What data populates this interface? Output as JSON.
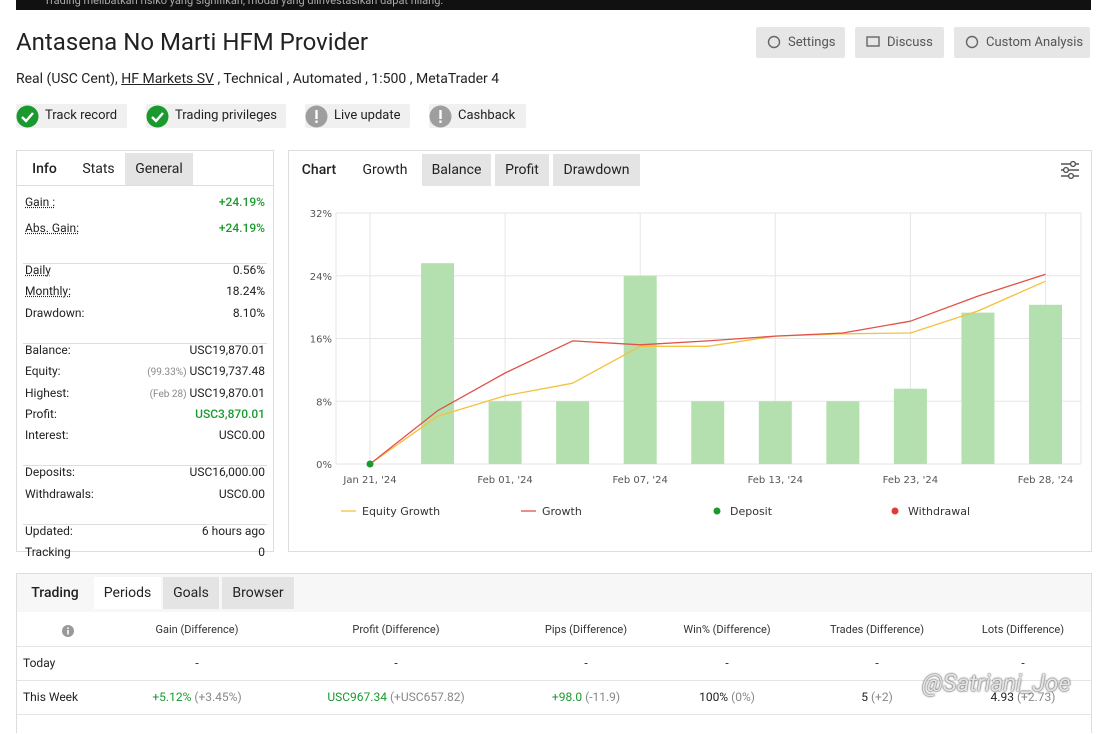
{
  "banner": "Trading melibatkan risiko yang signifikan, modal yang diinvestasikan dapat hilang.",
  "header": {
    "title": "Antasena No Marti HFM Provider",
    "buttons": [
      "Settings",
      "Discuss",
      "Custom Analysis"
    ],
    "subtitle": {
      "before": "Real (USC Cent),",
      "link": "HF Markets SV",
      "after": ", Technical , Automated , 1:500 , MetaTrader 4"
    }
  },
  "badges": [
    {
      "label": "Track record",
      "status": "ok"
    },
    {
      "label": "Trading privileges",
      "status": "ok"
    },
    {
      "label": "Live update",
      "status": "no"
    },
    {
      "label": "Cashback",
      "status": "no"
    }
  ],
  "stats_tabs": [
    "Info",
    "Stats",
    "General"
  ],
  "stats": [
    [
      {
        "label": "Gain :",
        "value": "+24.19%",
        "color": "#1a9a2e",
        "tip": true
      },
      {
        "label": "Abs. Gain:",
        "value": "+24.19%",
        "color": "#1a9a2e",
        "tip": true
      }
    ],
    [
      {
        "label": "Daily",
        "value": "0.56%",
        "tip": true
      },
      {
        "label": "Monthly:",
        "value": "18.24%",
        "tip": true
      },
      {
        "label": "Drawdown:",
        "value": "8.10%"
      }
    ],
    [
      {
        "label": "Balance:",
        "value": "USC19,870.01"
      },
      {
        "label": "Equity:",
        "note": "(99.33%)",
        "value": "USC19,737.48"
      },
      {
        "label": "Highest:",
        "note": "(Feb 28)",
        "value": "USC19,870.01"
      },
      {
        "label": "Profit:",
        "value": "USC3,870.01",
        "color": "#1a9a2e"
      },
      {
        "label": "Interest:",
        "value": "USC0.00"
      }
    ],
    [
      {
        "label": "Deposits:",
        "value": "USC16,000.00"
      },
      {
        "label": "Withdrawals:",
        "value": "USC0.00"
      }
    ],
    [
      {
        "label": "Updated:",
        "value": "6 hours ago"
      },
      {
        "label": "Tracking",
        "value": "0"
      }
    ]
  ],
  "chart_tabs": [
    "Chart",
    "Growth",
    "Balance",
    "Profit",
    "Drawdown"
  ],
  "chart": {
    "type": "bar",
    "categories": [
      "Jan 21, '24",
      null,
      "Feb 01, '24",
      null,
      "Feb 07, '24",
      null,
      "Feb 13, '24",
      null,
      "Feb 23, '24",
      null,
      "Feb 28, '24"
    ],
    "bars": {
      "color": "#b3e0ae",
      "values": [
        null,
        25.6,
        8,
        8,
        24,
        8,
        8,
        8,
        9.6,
        19.3,
        20.3
      ]
    },
    "series": [
      {
        "name": "Equity Growth",
        "color": "#f5c13d",
        "kind": "line",
        "values": [
          0,
          6.1,
          8.7,
          10.3,
          15,
          15,
          16.3,
          16.6,
          16.7,
          19.5,
          23.3
        ]
      },
      {
        "name": "Growth",
        "color": "#e0524a",
        "kind": "line",
        "values": [
          0,
          6.8,
          11.6,
          15.7,
          15.2,
          15.7,
          16.3,
          16.7,
          18.2,
          21.4,
          24.2
        ]
      },
      {
        "name": "Deposit",
        "color": "#1a9a2e",
        "kind": "point",
        "values": [
          0,
          null,
          null,
          null,
          null,
          null,
          null,
          null,
          null,
          null,
          null
        ]
      },
      {
        "name": "Withdrawal",
        "color": "#e53935",
        "kind": "point",
        "values": [
          null,
          null,
          null,
          null,
          null,
          null,
          null,
          null,
          null,
          null,
          null
        ]
      }
    ],
    "ylim": [
      0,
      32
    ],
    "yticks": [
      {
        "value": 0,
        "label": "0%"
      },
      {
        "value": 8,
        "label": "8%"
      },
      {
        "value": 16,
        "label": "16%"
      },
      {
        "value": 24,
        "label": "24%"
      },
      {
        "value": 32,
        "label": "32%"
      }
    ],
    "grid": true
  },
  "table_tabs": [
    "Trading",
    "Periods",
    "Goals",
    "Browser"
  ],
  "table": {
    "columns": [
      "Gain (Difference)",
      "Profit (Difference)",
      "Pips (Difference)",
      "Win% (Difference)",
      "Trades (Difference)",
      "Lots (Difference)"
    ],
    "rows": [
      {
        "label": "Today",
        "cells": [
          {
            "value": "-"
          },
          {
            "value": "-"
          },
          {
            "value": "-"
          },
          {
            "value": "-"
          },
          {
            "value": "-"
          },
          {
            "value": "-"
          }
        ]
      },
      {
        "label": "This Week",
        "cells": [
          {
            "value": "+5.12%",
            "diff": "(+3.45%)",
            "color": "#1a9a2e"
          },
          {
            "value": "USC967.34",
            "diff": "(+USC657.82)",
            "color": "#1a9a2e"
          },
          {
            "value": "+98.0",
            "diff": "(-11.9)",
            "color": "#1a9a2e"
          },
          {
            "value": "100%",
            "diff": "(0%)"
          },
          {
            "value": "5",
            "diff": "(+2)"
          },
          {
            "value": "4.93",
            "diff": "(+2.73)"
          }
        ]
      }
    ]
  },
  "watermark": "@Satriani_Joe"
}
